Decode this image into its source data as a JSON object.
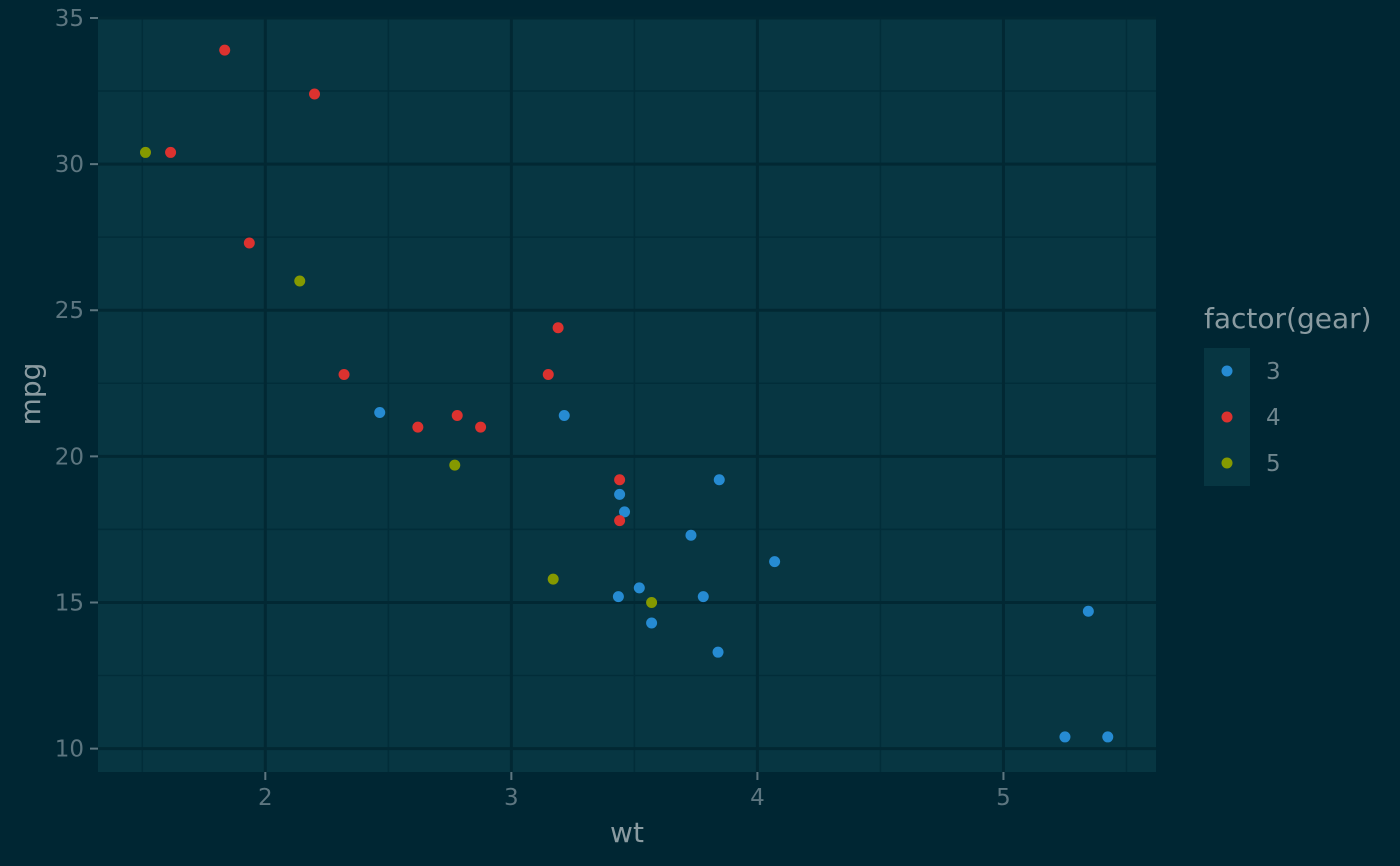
{
  "chart_data": {
    "type": "scatter",
    "xlabel": "wt",
    "ylabel": "mpg",
    "xlim": [
      1.32,
      5.62
    ],
    "ylim": [
      9.2,
      35.0
    ],
    "x_ticks": [
      2,
      3,
      4,
      5
    ],
    "y_ticks": [
      10,
      15,
      20,
      25,
      30,
      35
    ],
    "grid": true,
    "legend": {
      "title": "factor(gear)",
      "placement": "right"
    },
    "colors": {
      "3": "#268bd2",
      "4": "#dc322f",
      "5": "#859900"
    },
    "series": [
      {
        "name": "3",
        "color": "#268bd2",
        "points": [
          [
            3.215,
            21.4
          ],
          [
            3.44,
            18.7
          ],
          [
            3.46,
            18.1
          ],
          [
            3.57,
            14.3
          ],
          [
            4.07,
            16.4
          ],
          [
            3.73,
            17.3
          ],
          [
            3.78,
            15.2
          ],
          [
            5.25,
            10.4
          ],
          [
            5.424,
            10.4
          ],
          [
            5.345,
            14.7
          ],
          [
            2.465,
            21.5
          ],
          [
            3.52,
            15.5
          ],
          [
            3.435,
            15.2
          ],
          [
            3.84,
            13.3
          ],
          [
            3.845,
            19.2
          ]
        ]
      },
      {
        "name": "4",
        "color": "#dc322f",
        "points": [
          [
            2.62,
            21.0
          ],
          [
            2.875,
            21.0
          ],
          [
            2.32,
            22.8
          ],
          [
            3.19,
            24.4
          ],
          [
            3.15,
            22.8
          ],
          [
            3.44,
            19.2
          ],
          [
            3.44,
            17.8
          ],
          [
            2.2,
            32.4
          ],
          [
            1.615,
            30.4
          ],
          [
            1.835,
            33.9
          ],
          [
            1.935,
            27.3
          ],
          [
            2.78,
            21.4
          ]
        ]
      },
      {
        "name": "5",
        "color": "#859900",
        "points": [
          [
            2.14,
            26.0
          ],
          [
            1.513,
            30.4
          ],
          [
            3.17,
            15.8
          ],
          [
            2.77,
            19.7
          ],
          [
            3.57,
            15.0
          ]
        ]
      }
    ]
  }
}
